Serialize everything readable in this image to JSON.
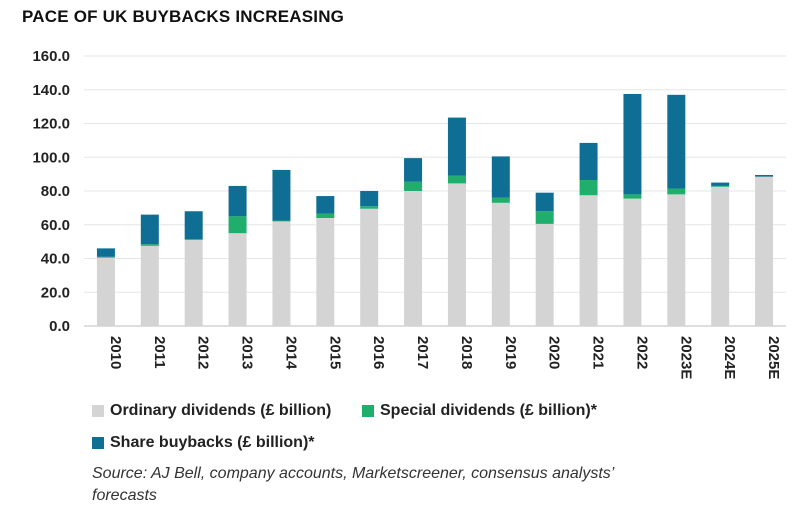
{
  "chart_data": {
    "type": "bar",
    "stacked": true,
    "title": "PACE OF UK BUYBACKS INCREASING",
    "categories": [
      "2010",
      "2011",
      "2012",
      "2013",
      "2014",
      "2015",
      "2016",
      "2017",
      "2018",
      "2019",
      "2020",
      "2021",
      "2022",
      "2023E",
      "2024E",
      "2025E"
    ],
    "series": [
      {
        "name": "Ordinary dividends (£ billion)",
        "color": "#d4d4d4",
        "values": [
          40.5,
          47.5,
          51,
          55,
          62,
          64,
          69.5,
          80,
          84.5,
          73,
          60.5,
          77.5,
          75.5,
          78,
          82.5,
          88.5
        ]
      },
      {
        "name": "Special dividends (£ billion)*",
        "color": "#1fae6c",
        "values": [
          0.5,
          1,
          0.5,
          10,
          0.5,
          2.5,
          1.5,
          5.5,
          4.5,
          3,
          7.5,
          9,
          2.5,
          3.5,
          0.5,
          0
        ]
      },
      {
        "name": "Share buybacks (£ billion)*",
        "color": "#0f6e93",
        "values": [
          5,
          17.5,
          16.5,
          18,
          30,
          10.5,
          9,
          14,
          34.5,
          24.5,
          11,
          22,
          59.5,
          55.5,
          2,
          1
        ]
      }
    ],
    "ylim": [
      0,
      160
    ],
    "yticks": [
      "0.0",
      "20.0",
      "40.0",
      "60.0",
      "80.0",
      "100.0",
      "120.0",
      "140.0",
      "160.0"
    ],
    "grid": true,
    "legend": "bottom",
    "xlabel": "",
    "ylabel": ""
  },
  "source": "Source: AJ Bell, company accounts, Marketscreener, consensus analysts’ forecasts"
}
